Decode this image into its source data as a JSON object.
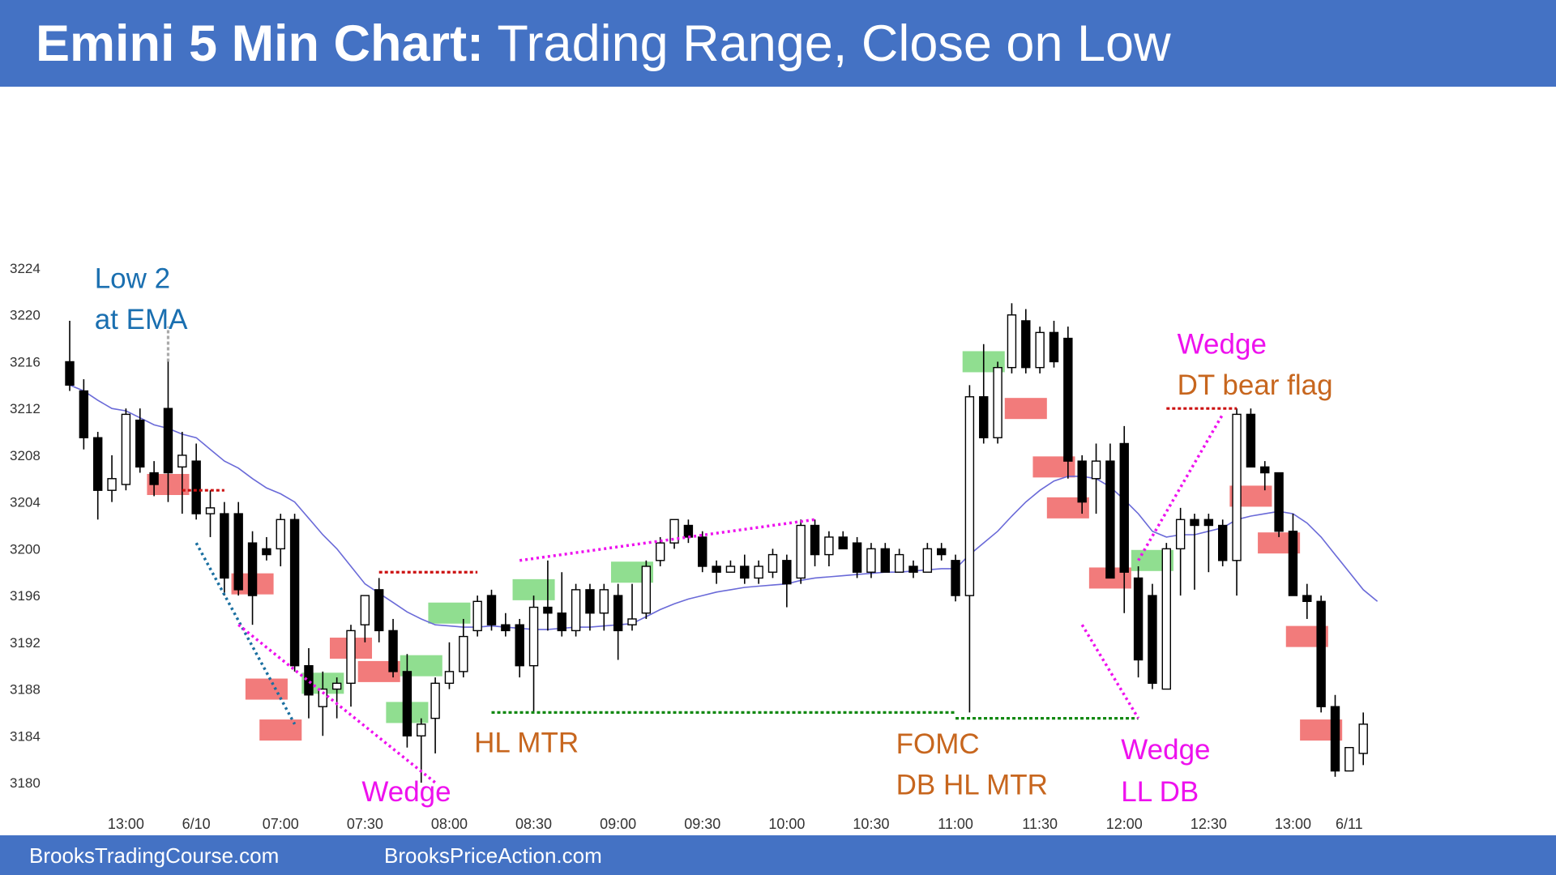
{
  "header": {
    "title_bold": "Emini 5 Min Chart:",
    "title_rest": " Trading Range, Close on Low",
    "bar_color": "#4472c4"
  },
  "footer": {
    "left": "BrooksTradingCourse.com",
    "right": "BrooksPriceAction.com"
  },
  "colors": {
    "bull_highlight": "#7dd87d",
    "bear_highlight": "#f06464",
    "ema": "#6a6ad8",
    "magenta": "#ee11ee",
    "orange": "#c7661e",
    "blue": "#1a6fb0",
    "green_dotted": "#118811",
    "red_dotted": "#cc1111",
    "navy_dotted": "#1a6fa0"
  },
  "chart_data": {
    "type": "candlestick",
    "ylim": [
      3180,
      3224
    ],
    "yticks": [
      "3224",
      "3220",
      "3216",
      "3212",
      "3208",
      "3204",
      "3200",
      "3196",
      "3192",
      "3188",
      "3184",
      "3180"
    ],
    "xticks": [
      {
        "label": "13:00",
        "i": 4
      },
      {
        "label": "6/10",
        "i": 9
      },
      {
        "label": "07:00",
        "i": 15
      },
      {
        "label": "07:30",
        "i": 21
      },
      {
        "label": "08:00",
        "i": 27
      },
      {
        "label": "08:30",
        "i": 33
      },
      {
        "label": "09:00",
        "i": 39
      },
      {
        "label": "09:30",
        "i": 45
      },
      {
        "label": "10:00",
        "i": 51
      },
      {
        "label": "10:30",
        "i": 57
      },
      {
        "label": "11:00",
        "i": 63
      },
      {
        "label": "11:30",
        "i": 69
      },
      {
        "label": "12:00",
        "i": 75
      },
      {
        "label": "12:30",
        "i": 81
      },
      {
        "label": "13:00",
        "i": 87
      },
      {
        "label": "6/11",
        "i": 91
      }
    ],
    "candles": [
      {
        "o": 3216,
        "h": 3219.5,
        "l": 3213.5,
        "c": 3214
      },
      {
        "o": 3213.5,
        "h": 3214.5,
        "l": 3208.5,
        "c": 3209.5
      },
      {
        "o": 3209.5,
        "h": 3210,
        "l": 3202.5,
        "c": 3205
      },
      {
        "o": 3205,
        "h": 3208,
        "l": 3204,
        "c": 3206
      },
      {
        "o": 3205.5,
        "h": 3212,
        "l": 3205,
        "c": 3211.5
      },
      {
        "o": 3211,
        "h": 3212,
        "l": 3206.5,
        "c": 3207
      },
      {
        "o": 3206.5,
        "h": 3207.5,
        "l": 3204.5,
        "c": 3205.5
      },
      {
        "o": 3212,
        "h": 3216,
        "l": 3204,
        "c": 3206.5
      },
      {
        "o": 3207,
        "h": 3210,
        "l": 3203,
        "c": 3208
      },
      {
        "o": 3207.5,
        "h": 3209,
        "l": 3202.5,
        "c": 3203
      },
      {
        "o": 3203,
        "h": 3205,
        "l": 3201,
        "c": 3203.5
      },
      {
        "o": 3203,
        "h": 3204,
        "l": 3196,
        "c": 3197.5
      },
      {
        "o": 3203,
        "h": 3204,
        "l": 3196,
        "c": 3196.5
      },
      {
        "o": 3200.5,
        "h": 3201.5,
        "l": 3193.5,
        "c": 3196
      },
      {
        "o": 3200,
        "h": 3201,
        "l": 3199,
        "c": 3199.5
      },
      {
        "o": 3200,
        "h": 3203,
        "l": 3198.5,
        "c": 3202.5
      },
      {
        "o": 3202.5,
        "h": 3203,
        "l": 3189.5,
        "c": 3190
      },
      {
        "o": 3190,
        "h": 3191.5,
        "l": 3185.5,
        "c": 3187.5
      },
      {
        "o": 3186.5,
        "h": 3189.5,
        "l": 3184,
        "c": 3188
      },
      {
        "o": 3188,
        "h": 3189,
        "l": 3185.5,
        "c": 3188.5
      },
      {
        "o": 3188.5,
        "h": 3193.5,
        "l": 3186.5,
        "c": 3193
      },
      {
        "o": 3193.5,
        "h": 3196,
        "l": 3192,
        "c": 3196
      },
      {
        "o": 3196.5,
        "h": 3197.5,
        "l": 3192,
        "c": 3193
      },
      {
        "o": 3193,
        "h": 3194,
        "l": 3189,
        "c": 3189.5
      },
      {
        "o": 3189.5,
        "h": 3191,
        "l": 3183,
        "c": 3184
      },
      {
        "o": 3184,
        "h": 3185.5,
        "l": 3180,
        "c": 3185
      },
      {
        "o": 3185.5,
        "h": 3189,
        "l": 3182.5,
        "c": 3188.5
      },
      {
        "o": 3188.5,
        "h": 3192,
        "l": 3188,
        "c": 3189.5
      },
      {
        "o": 3189.5,
        "h": 3194,
        "l": 3189,
        "c": 3192.5
      },
      {
        "o": 3193,
        "h": 3196,
        "l": 3192.5,
        "c": 3195.5
      },
      {
        "o": 3196,
        "h": 3196.5,
        "l": 3193,
        "c": 3193.5
      },
      {
        "o": 3193.5,
        "h": 3194.5,
        "l": 3192.5,
        "c": 3193
      },
      {
        "o": 3193.5,
        "h": 3194,
        "l": 3189,
        "c": 3190
      },
      {
        "o": 3190,
        "h": 3196,
        "l": 3186,
        "c": 3195
      },
      {
        "o": 3195,
        "h": 3199,
        "l": 3193,
        "c": 3194.5
      },
      {
        "o": 3194.5,
        "h": 3198,
        "l": 3192.5,
        "c": 3193
      },
      {
        "o": 3193,
        "h": 3197,
        "l": 3192.5,
        "c": 3196.5
      },
      {
        "o": 3196.5,
        "h": 3197,
        "l": 3193,
        "c": 3194.5
      },
      {
        "o": 3194.5,
        "h": 3197,
        "l": 3193,
        "c": 3196.5
      },
      {
        "o": 3196,
        "h": 3197,
        "l": 3190.5,
        "c": 3193
      },
      {
        "o": 3193.5,
        "h": 3197,
        "l": 3193,
        "c": 3194
      },
      {
        "o": 3194.5,
        "h": 3199,
        "l": 3194,
        "c": 3198.5
      },
      {
        "o": 3199,
        "h": 3201,
        "l": 3198.5,
        "c": 3200.5
      },
      {
        "o": 3200.5,
        "h": 3202.5,
        "l": 3200,
        "c": 3202.5
      },
      {
        "o": 3202,
        "h": 3202.5,
        "l": 3200.5,
        "c": 3201
      },
      {
        "o": 3201,
        "h": 3201.5,
        "l": 3198,
        "c": 3198.5
      },
      {
        "o": 3198.5,
        "h": 3199,
        "l": 3197,
        "c": 3198
      },
      {
        "o": 3198,
        "h": 3199,
        "l": 3198,
        "c": 3198.5
      },
      {
        "o": 3198.5,
        "h": 3199.5,
        "l": 3197,
        "c": 3197.5
      },
      {
        "o": 3197.5,
        "h": 3199,
        "l": 3197,
        "c": 3198.5
      },
      {
        "o": 3198,
        "h": 3200,
        "l": 3197.5,
        "c": 3199.5
      },
      {
        "o": 3199,
        "h": 3199.5,
        "l": 3195,
        "c": 3197
      },
      {
        "o": 3197.5,
        "h": 3202.5,
        "l": 3197,
        "c": 3202
      },
      {
        "o": 3202,
        "h": 3202.5,
        "l": 3198.5,
        "c": 3199.5
      },
      {
        "o": 3199.5,
        "h": 3201.5,
        "l": 3198.5,
        "c": 3201
      },
      {
        "o": 3201,
        "h": 3201.5,
        "l": 3200,
        "c": 3200
      },
      {
        "o": 3200.5,
        "h": 3201,
        "l": 3197.5,
        "c": 3198
      },
      {
        "o": 3198,
        "h": 3200.5,
        "l": 3197.5,
        "c": 3200
      },
      {
        "o": 3200,
        "h": 3200.5,
        "l": 3198,
        "c": 3198
      },
      {
        "o": 3198,
        "h": 3200,
        "l": 3198,
        "c": 3199.5
      },
      {
        "o": 3198.5,
        "h": 3199,
        "l": 3197.5,
        "c": 3198
      },
      {
        "o": 3198,
        "h": 3200.5,
        "l": 3198,
        "c": 3200
      },
      {
        "o": 3200,
        "h": 3200.5,
        "l": 3199,
        "c": 3199.5
      },
      {
        "o": 3199,
        "h": 3199.5,
        "l": 3195.5,
        "c": 3196
      },
      {
        "o": 3196,
        "h": 3214,
        "l": 3186,
        "c": 3213
      },
      {
        "o": 3213,
        "h": 3217.5,
        "l": 3209,
        "c": 3209.5
      },
      {
        "o": 3209.5,
        "h": 3216,
        "l": 3209,
        "c": 3215.5
      },
      {
        "o": 3215.5,
        "h": 3221,
        "l": 3215,
        "c": 3220
      },
      {
        "o": 3219.5,
        "h": 3220.5,
        "l": 3215,
        "c": 3215.5
      },
      {
        "o": 3215.5,
        "h": 3219,
        "l": 3215,
        "c": 3218.5
      },
      {
        "o": 3218.5,
        "h": 3219.5,
        "l": 3215.5,
        "c": 3216
      },
      {
        "o": 3218,
        "h": 3219,
        "l": 3206,
        "c": 3207.5
      },
      {
        "o": 3207.5,
        "h": 3208,
        "l": 3203,
        "c": 3204
      },
      {
        "o": 3206,
        "h": 3209,
        "l": 3203,
        "c": 3207.5
      },
      {
        "o": 3207.5,
        "h": 3209,
        "l": 3197.5,
        "c": 3197.5
      },
      {
        "o": 3209,
        "h": 3210.5,
        "l": 3194.5,
        "c": 3198
      },
      {
        "o": 3197.5,
        "h": 3198.5,
        "l": 3189,
        "c": 3190.5
      },
      {
        "o": 3196,
        "h": 3197,
        "l": 3188,
        "c": 3188.5
      },
      {
        "o": 3188,
        "h": 3200.5,
        "l": 3188,
        "c": 3200
      },
      {
        "o": 3200,
        "h": 3203.5,
        "l": 3196,
        "c": 3202.5
      },
      {
        "o": 3202.5,
        "h": 3203,
        "l": 3196.5,
        "c": 3202
      },
      {
        "o": 3202.5,
        "h": 3203,
        "l": 3198,
        "c": 3202
      },
      {
        "o": 3202,
        "h": 3202.5,
        "l": 3198.5,
        "c": 3199
      },
      {
        "o": 3199,
        "h": 3212,
        "l": 3196,
        "c": 3211.5
      },
      {
        "o": 3211.5,
        "h": 3212,
        "l": 3207,
        "c": 3207
      },
      {
        "o": 3207,
        "h": 3207.5,
        "l": 3205,
        "c": 3206.5
      },
      {
        "o": 3206.5,
        "h": 3206.5,
        "l": 3201,
        "c": 3201.5
      },
      {
        "o": 3201.5,
        "h": 3203,
        "l": 3196,
        "c": 3196
      },
      {
        "o": 3196,
        "h": 3197,
        "l": 3194,
        "c": 3195.5
      },
      {
        "o": 3195.5,
        "h": 3196,
        "l": 3186,
        "c": 3186.5
      },
      {
        "o": 3186.5,
        "h": 3187.5,
        "l": 3180.5,
        "c": 3181
      },
      {
        "o": 3181,
        "h": 3183,
        "l": 3181,
        "c": 3183
      },
      {
        "o": 3182.5,
        "h": 3186,
        "l": 3181.5,
        "c": 3185
      }
    ],
    "ema": [
      3214,
      3213.5,
      3212.7,
      3212,
      3211.8,
      3211.2,
      3210.6,
      3210.3,
      3209.8,
      3209.5,
      3208.5,
      3207.5,
      3206.9,
      3206,
      3205.2,
      3204.7,
      3204,
      3202.6,
      3201.2,
      3200,
      3198.5,
      3197,
      3196.2,
      3195.4,
      3194.6,
      3194,
      3193.5,
      3193.4,
      3193.3,
      3193.3,
      3193.4,
      3193.3,
      3193.2,
      3193.1,
      3193.1,
      3193.2,
      3193.3,
      3193.3,
      3193.4,
      3193.5,
      3193.6,
      3194.2,
      3194.8,
      3195.3,
      3195.7,
      3196,
      3196.3,
      3196.5,
      3196.7,
      3196.8,
      3196.9,
      3197,
      3197.3,
      3197.5,
      3197.6,
      3197.7,
      3197.8,
      3197.9,
      3198,
      3198,
      3198.1,
      3198.2,
      3198.3,
      3198.3,
      3199.5,
      3200.5,
      3201.5,
      3202.8,
      3204,
      3205,
      3205.8,
      3206.2,
      3206.2,
      3206,
      3205.3,
      3204.2,
      3203,
      3201.5,
      3201,
      3201.2,
      3201.2,
      3201.5,
      3201.8,
      3202.5,
      3202.8,
      3203,
      3203.2,
      3203,
      3202.2,
      3201,
      3199.5,
      3198,
      3196.5,
      3195.5
    ],
    "highlights": [
      {
        "type": "bear",
        "i": 7,
        "y": 3205.5,
        "w": 3
      },
      {
        "type": "bear",
        "i": 13,
        "y": 3197,
        "w": 3
      },
      {
        "type": "bear",
        "i": 14,
        "y": 3188,
        "w": 3
      },
      {
        "type": "bear",
        "i": 15,
        "y": 3184.5,
        "w": 3
      },
      {
        "type": "bull",
        "i": 18,
        "y": 3188.5,
        "w": 3
      },
      {
        "type": "bear",
        "i": 20,
        "y": 3191.5,
        "w": 3
      },
      {
        "type": "bear",
        "i": 22,
        "y": 3189.5,
        "w": 3
      },
      {
        "type": "bull",
        "i": 24,
        "y": 3186,
        "w": 3
      },
      {
        "type": "bull",
        "i": 25,
        "y": 3190,
        "w": 3
      },
      {
        "type": "bull",
        "i": 27,
        "y": 3194.5,
        "w": 3
      },
      {
        "type": "bull",
        "i": 33,
        "y": 3196.5,
        "w": 3
      },
      {
        "type": "bull",
        "i": 40,
        "y": 3198,
        "w": 3
      },
      {
        "type": "bull",
        "i": 65,
        "y": 3216,
        "w": 3
      },
      {
        "type": "bear",
        "i": 68,
        "y": 3212,
        "w": 3
      },
      {
        "type": "bear",
        "i": 70,
        "y": 3207,
        "w": 3
      },
      {
        "type": "bear",
        "i": 71,
        "y": 3203.5,
        "w": 3
      },
      {
        "type": "bear",
        "i": 74,
        "y": 3197.5,
        "w": 3
      },
      {
        "type": "bull",
        "i": 77,
        "y": 3199,
        "w": 3
      },
      {
        "type": "bear",
        "i": 84,
        "y": 3204.5,
        "w": 3
      },
      {
        "type": "bear",
        "i": 86,
        "y": 3200.5,
        "w": 3
      },
      {
        "type": "bear",
        "i": 88,
        "y": 3192.5,
        "w": 3
      },
      {
        "type": "bear",
        "i": 89,
        "y": 3184.5,
        "w": 3
      }
    ],
    "lines": [
      {
        "kind": "red_dotted",
        "i0": 8,
        "y0": 3205,
        "i1": 11,
        "y1": 3205
      },
      {
        "kind": "red_dotted",
        "i0": 22,
        "y0": 3198,
        "i1": 29,
        "y1": 3198
      },
      {
        "kind": "red_dotted",
        "i0": 78,
        "y0": 3212,
        "i1": 83,
        "y1": 3212
      },
      {
        "kind": "green_dotted",
        "i0": 30,
        "y0": 3186,
        "i1": 63,
        "y1": 3186
      },
      {
        "kind": "green_dotted",
        "i0": 63,
        "y0": 3185.5,
        "i1": 76,
        "y1": 3185.5
      },
      {
        "kind": "navy_dotted",
        "i0": 9,
        "y0": 3200.5,
        "i1": 16,
        "y1": 3185
      },
      {
        "kind": "magenta",
        "i0": 12,
        "y0": 3193.5,
        "i1": 26,
        "y1": 3180
      },
      {
        "kind": "magenta",
        "i0": 32,
        "y0": 3199,
        "i1": 53,
        "y1": 3202.5
      },
      {
        "kind": "magenta",
        "i0": 76,
        "y0": 3199,
        "i1": 82,
        "y1": 3211.5
      },
      {
        "kind": "magenta",
        "i0": 72,
        "y0": 3193.5,
        "i1": 76,
        "y1": 3185.5
      },
      {
        "kind": "gray_dotted",
        "i0": 7,
        "y0": 3216,
        "i1": 7,
        "y1": 3219
      }
    ],
    "annotations": [
      {
        "text": "Low 2",
        "color": "blue",
        "i": 2,
        "y": 3222.3
      },
      {
        "text": "at EMA",
        "color": "blue",
        "i": 2,
        "y": 3218.8
      },
      {
        "text": "Wedge",
        "color": "magenta",
        "i": 21,
        "y": 3178.4
      },
      {
        "text": "HL MTR",
        "color": "orange",
        "i": 29,
        "y": 3182.6
      },
      {
        "text": "FOMC",
        "color": "orange",
        "i": 59,
        "y": 3182.5
      },
      {
        "text": "DB HL MTR",
        "color": "orange",
        "i": 59,
        "y": 3179
      },
      {
        "text": "Wedge",
        "color": "magenta",
        "i": 75,
        "y": 3182
      },
      {
        "text": "LL DB",
        "color": "magenta",
        "i": 75,
        "y": 3178.4
      },
      {
        "text": "Wedge",
        "color": "magenta",
        "i": 79,
        "y": 3216.7
      },
      {
        "text": "DT bear flag",
        "color": "orange",
        "i": 79,
        "y": 3213.2
      }
    ]
  }
}
